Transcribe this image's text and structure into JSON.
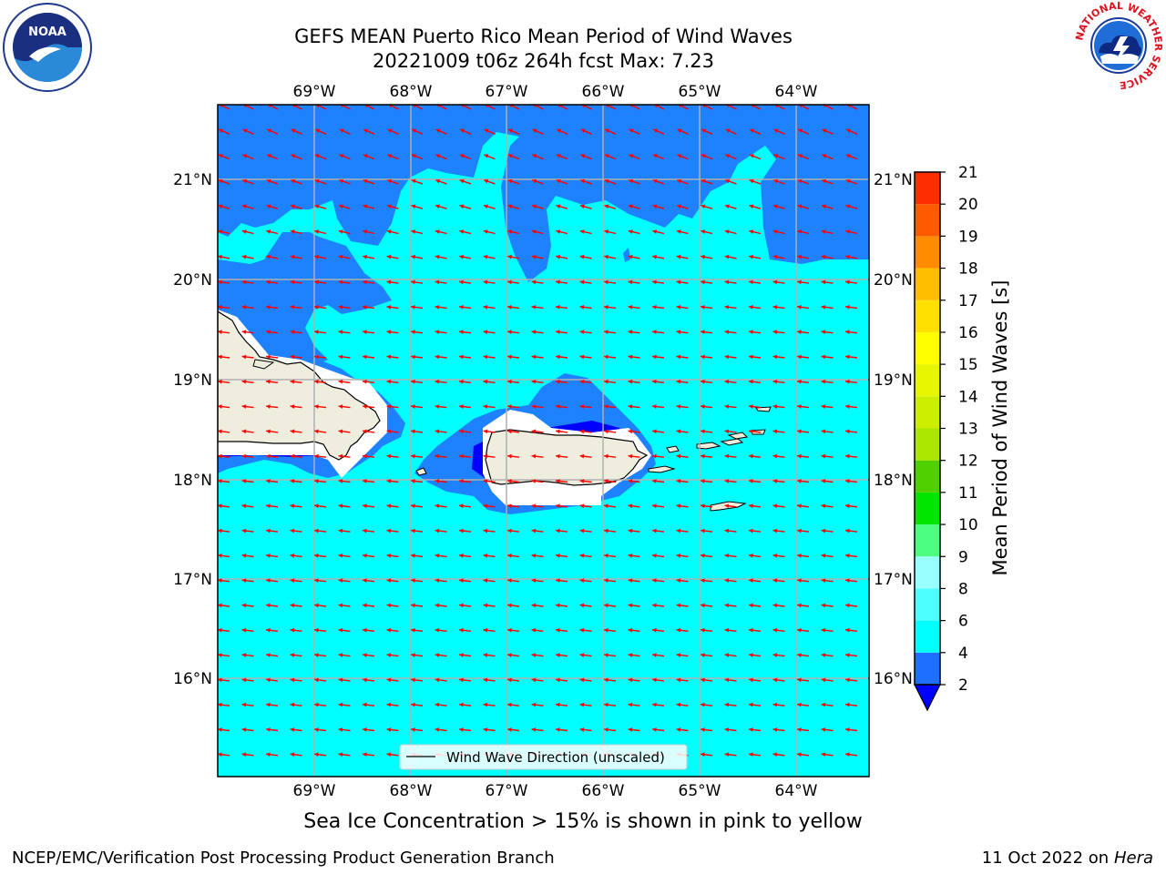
{
  "header": {
    "title_line1": "GEFS MEAN Puerto Rico Mean Period of Wind Waves",
    "title_line2": "20221009 t06z 264h fcst   Max: 7.23"
  },
  "logos": {
    "left": {
      "icon": "noaa-logo",
      "text": "NOAA",
      "ring_text": "NATIONAL OCEANIC AND ATMOSPHERIC ADMINISTRATION · U.S. DEPARTMENT OF COMMERCE"
    },
    "right": {
      "icon": "nws-logo",
      "ring_text": "NATIONAL WEATHER SERVICE"
    }
  },
  "map": {
    "lon_labels": [
      "69°W",
      "68°W",
      "67°W",
      "66°W",
      "65°W",
      "64°W"
    ],
    "lat_labels": [
      "21°N",
      "20°N",
      "19°N",
      "18°N",
      "17°N",
      "16°N"
    ],
    "legend_text": "Wind Wave Direction (unscaled)",
    "arrow_color": "#ff0000",
    "ocean_color": "#00ffff",
    "low_period_color": "#1e82ff",
    "land_color": "#efedde"
  },
  "colorbar": {
    "label": "Mean Period of Wind Waves [s]",
    "ticks": [
      "2",
      "4",
      "6",
      "8",
      "9",
      "10",
      "11",
      "12",
      "13",
      "14",
      "15",
      "16",
      "17",
      "18",
      "19",
      "20",
      "21"
    ],
    "colors": [
      "#1e6eff",
      "#00ffff",
      "#4dffff",
      "#9affff",
      "#4dff80",
      "#00e600",
      "#50d000",
      "#aae600",
      "#ccef00",
      "#e6f500",
      "#ffff00",
      "#ffe000",
      "#ffbf00",
      "#ff8c00",
      "#ff5a00",
      "#ff2d00",
      "#ff0000"
    ],
    "extend_color": "#0000ff"
  },
  "note": "Sea Ice Concentration > 15% is shown in pink to yellow",
  "footer": {
    "left": "NCEP/EMC/Verification Post Processing Product Generation Branch",
    "right_date": "11 Oct 2022 on ",
    "right_host": "Hera"
  }
}
